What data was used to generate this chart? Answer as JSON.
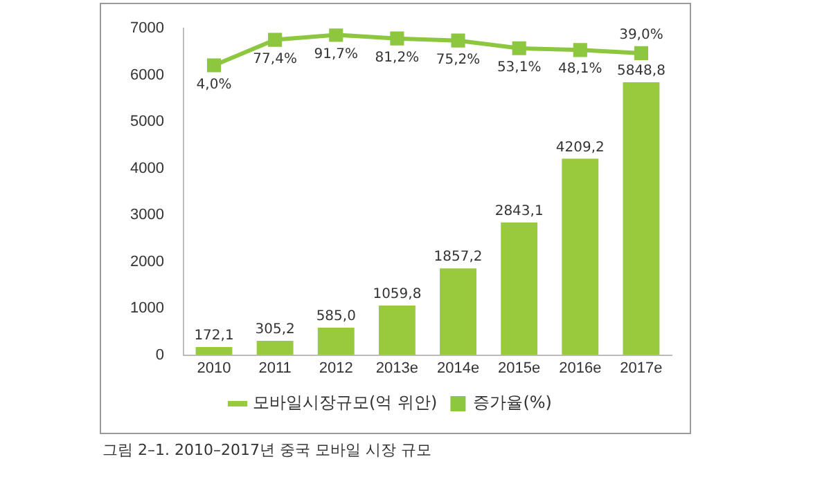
{
  "chart_data": {
    "type": "bar",
    "categories": [
      "2010",
      "2011",
      "2012",
      "2013e",
      "2014e",
      "2015e",
      "2016e",
      "2017e"
    ],
    "series": [
      {
        "name": "모바일시장규모(억 위안)",
        "color": "#99c93c",
        "values": [
          172.1,
          305.2,
          585.0,
          1059.8,
          1857.2,
          2843.1,
          4209.2,
          5848.8
        ],
        "value_labels": [
          "172,1",
          "305,2",
          "585,0",
          "1059,8",
          "1857,2",
          "2843,1",
          "4209,2",
          "5848,8"
        ]
      },
      {
        "name": "증가율(%)",
        "type": "line",
        "axis": "y2",
        "color": "#8dc63f",
        "values": [
          4.0,
          77.4,
          91.7,
          81.2,
          75.2,
          53.1,
          48.1,
          39.0
        ],
        "value_labels": [
          "4,0%",
          "77,4%",
          "91,7%",
          "81,2%",
          "75,2%",
          "53,1%",
          "48,1%",
          "39,0%"
        ]
      }
    ],
    "ylim": [
      0,
      7000
    ],
    "yticks": [
      0,
      1000,
      2000,
      3000,
      4000,
      5000,
      6000,
      7000
    ],
    "y2lim": [
      -830,
      110
    ],
    "tick_labels": "xy",
    "marker": "square",
    "legend": "bottom",
    "grid": false,
    "annotations": [
      "그림 2–1. 2010–2017년 중국 모바일 시장 규모"
    ]
  }
}
